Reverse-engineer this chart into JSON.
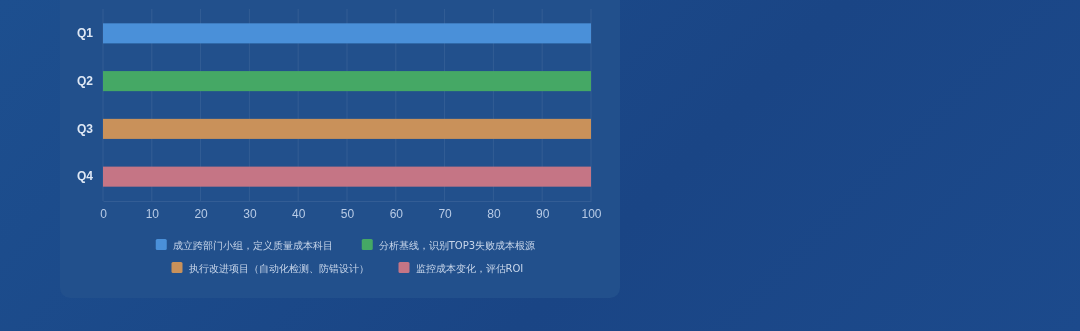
{
  "chart_data": {
    "type": "bar",
    "orientation": "horizontal",
    "stacked": true,
    "categories": [
      "Q1",
      "Q2",
      "Q3",
      "Q4"
    ],
    "series": [
      {
        "name": "成立跨部门小组，定义质量成本科目",
        "color": "#4a90d9",
        "values": [
          100,
          null,
          null,
          null
        ]
      },
      {
        "name": "分析基线，识别TOP3失败成本根源",
        "color": "#45a865",
        "values": [
          null,
          100,
          null,
          null
        ]
      },
      {
        "name": "执行改进项目（自动化检测、防错设计）",
        "color": "#c9915a",
        "values": [
          null,
          null,
          100,
          null
        ]
      },
      {
        "name": "监控成本变化，评估ROI",
        "color": "#c57585",
        "values": [
          null,
          null,
          null,
          100
        ]
      }
    ],
    "xlim": [
      0,
      100
    ],
    "xticks": [
      0,
      10,
      20,
      30,
      40,
      50,
      60,
      70,
      80,
      90,
      100
    ],
    "grid": "x",
    "legend": "bottom"
  }
}
